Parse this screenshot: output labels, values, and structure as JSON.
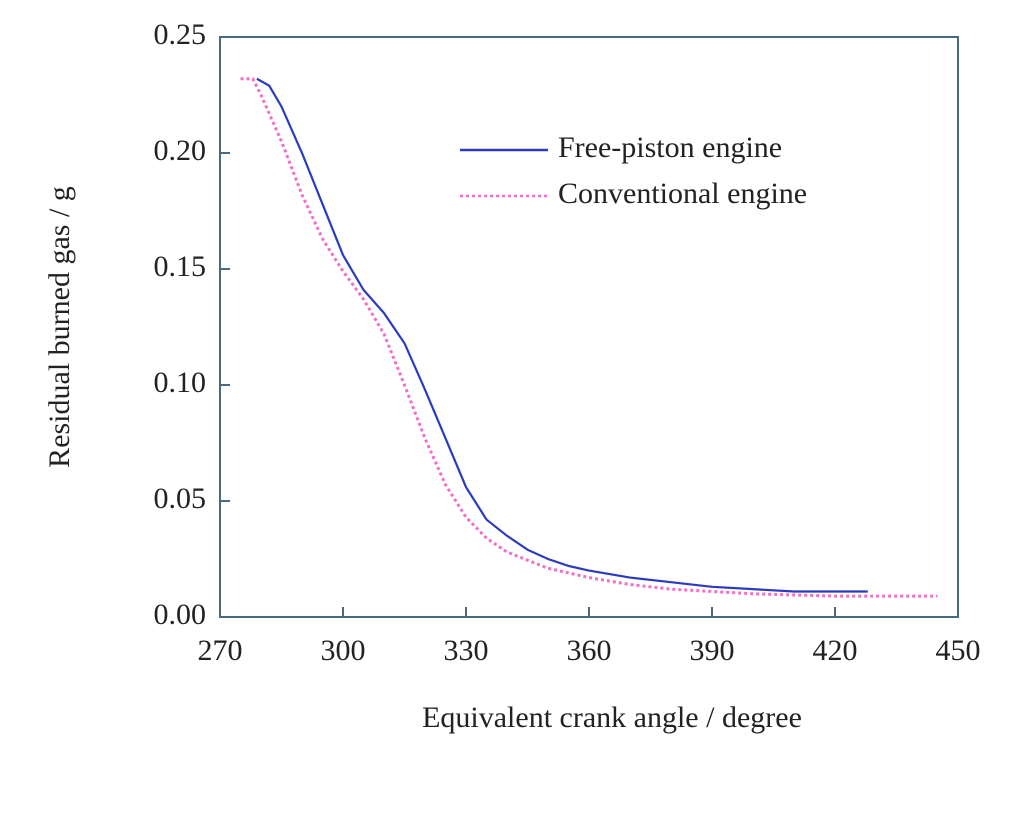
{
  "chart_data": {
    "type": "line",
    "xlabel": "Equivalent crank angle / degree",
    "ylabel": "Residual burned gas / g",
    "xlim": [
      270,
      450
    ],
    "ylim": [
      0,
      0.25
    ],
    "xticks": [
      270,
      300,
      330,
      360,
      390,
      420,
      450
    ],
    "yticks": [
      {
        "value": 0,
        "label": "0.00"
      },
      0.05,
      {
        "value": 0.1,
        "label": "0.10"
      },
      0.15,
      {
        "value": 0.2,
        "label": "0.20"
      },
      0.25
    ],
    "legend": "upper right",
    "series": [
      {
        "name": "Free-piston engine",
        "color": "#2b3bbf",
        "style": "solid",
        "x": [
          279,
          282,
          285,
          290,
          295,
          300,
          305,
          310,
          315,
          320,
          325,
          330,
          335,
          340,
          345,
          350,
          355,
          360,
          370,
          380,
          390,
          400,
          410,
          420,
          428
        ],
        "values": [
          0.232,
          0.229,
          0.22,
          0.2,
          0.178,
          0.156,
          0.141,
          0.131,
          0.118,
          0.098,
          0.077,
          0.056,
          0.042,
          0.035,
          0.029,
          0.025,
          0.022,
          0.02,
          0.017,
          0.015,
          0.013,
          0.012,
          0.011,
          0.011,
          0.011
        ]
      },
      {
        "name": "Conventional engine",
        "color": "#f06fc8",
        "style": "dotted",
        "x": [
          275,
          278,
          280,
          285,
          290,
          295,
          300,
          305,
          310,
          315,
          320,
          325,
          330,
          335,
          340,
          350,
          360,
          370,
          380,
          390,
          400,
          420,
          445
        ],
        "values": [
          0.232,
          0.232,
          0.225,
          0.205,
          0.182,
          0.163,
          0.149,
          0.137,
          0.122,
          0.1,
          0.077,
          0.057,
          0.043,
          0.034,
          0.028,
          0.021,
          0.017,
          0.014,
          0.012,
          0.011,
          0.01,
          0.009,
          0.009
        ]
      }
    ]
  }
}
